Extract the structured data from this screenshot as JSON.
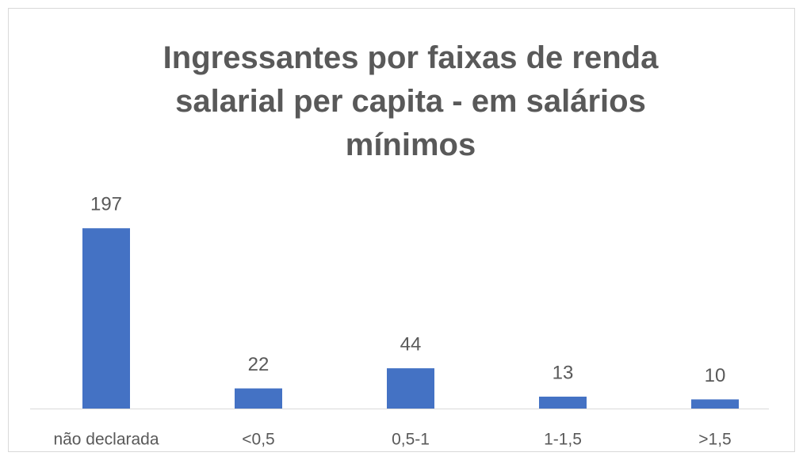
{
  "chart_data": {
    "type": "bar",
    "title": "Ingressantes por faixas de renda salarial per capita - em salários mínimos",
    "categories": [
      "não declarada",
      "<0,5",
      "0,5-1",
      "1-1,5",
      ">1,5"
    ],
    "values": [
      197,
      22,
      44,
      13,
      10
    ],
    "color": "#4472c4",
    "ylim": [
      0,
      250
    ],
    "grid": false
  }
}
